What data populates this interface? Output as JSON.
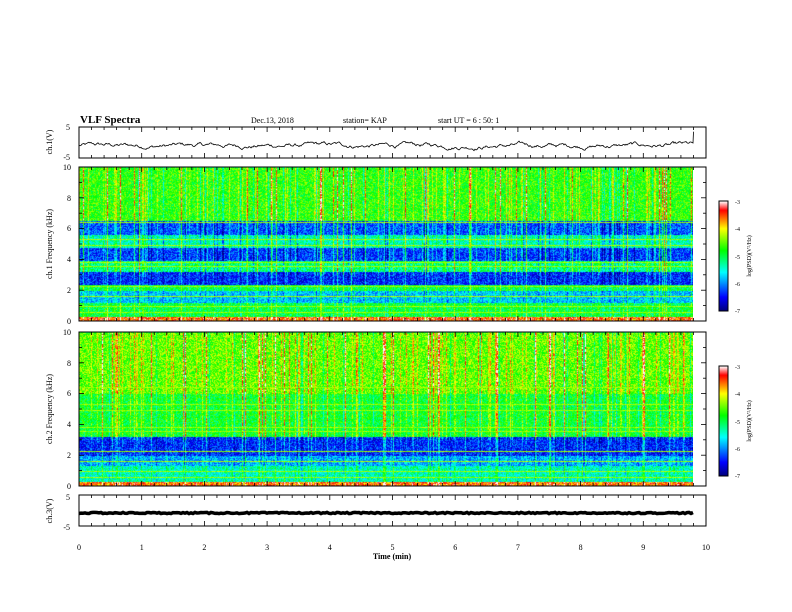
{
  "header": {
    "title": "VLF Spectra",
    "date": "Dec.13, 2018",
    "station": "station= KAP",
    "start_time": "start  UT =  6 : 50: 1"
  },
  "chart_data": [
    {
      "type": "line",
      "panel": "ch1-waveform",
      "ylabel": "ch.1(V)",
      "ylim": [
        -5,
        5
      ],
      "ytick_labels": [
        "5",
        "-5"
      ],
      "xlim": [
        0,
        10
      ],
      "trace_description_values": {
        "baseline": -1.0,
        "fluctuation_range": [
          -3.5,
          1.5
        ],
        "end_spike": 3.5
      }
    },
    {
      "type": "heatmap",
      "panel": "ch1-spectrogram",
      "ylabel": "ch.1 Frequency (kHz)",
      "ylim": [
        0,
        10
      ],
      "ytick_labels": [
        "0",
        "2",
        "4",
        "6",
        "8",
        "10"
      ],
      "xlim": [
        0,
        10
      ],
      "data_extent_min": 9.8,
      "colorbar": {
        "label": "log(PSD)(V²/Hz)",
        "range": [
          -7,
          -3
        ],
        "tick_labels": [
          "-3",
          "-4",
          "-5",
          "-6",
          "-7"
        ]
      },
      "bands_khz": [
        {
          "from": 0.0,
          "to": 0.3,
          "level": -3.5
        },
        {
          "from": 0.3,
          "to": 1.2,
          "level": -5.0
        },
        {
          "from": 1.2,
          "to": 2.0,
          "level": -5.8
        },
        {
          "from": 2.0,
          "to": 2.4,
          "level": -5.0
        },
        {
          "from": 2.4,
          "to": 3.2,
          "level": -6.4
        },
        {
          "from": 3.2,
          "to": 3.9,
          "level": -5.2
        },
        {
          "from": 3.9,
          "to": 4.8,
          "level": -6.3
        },
        {
          "from": 4.8,
          "to": 5.6,
          "level": -5.4
        },
        {
          "from": 5.6,
          "to": 6.5,
          "level": -6.2
        },
        {
          "from": 6.5,
          "to": 10.0,
          "level": -4.7
        }
      ]
    },
    {
      "type": "heatmap",
      "panel": "ch2-spectrogram",
      "ylabel": "ch.2 Frequency (kHz)",
      "ylim": [
        0,
        10
      ],
      "ytick_labels": [
        "0",
        "2",
        "4",
        "6",
        "8",
        "10"
      ],
      "xlim": [
        0,
        10
      ],
      "data_extent_min": 9.8,
      "colorbar": {
        "label": "log(PSD)(V²/Hz)",
        "range": [
          -7,
          -3
        ],
        "tick_labels": [
          "-3",
          "-4",
          "-5",
          "-6",
          "-7"
        ]
      },
      "bands_khz": [
        {
          "from": 0.0,
          "to": 0.3,
          "level": -3.6
        },
        {
          "from": 0.3,
          "to": 1.3,
          "level": -5.4
        },
        {
          "from": 1.3,
          "to": 2.0,
          "level": -5.9
        },
        {
          "from": 2.0,
          "to": 3.2,
          "level": -6.4
        },
        {
          "from": 3.2,
          "to": 6.0,
          "level": -4.9
        },
        {
          "from": 6.0,
          "to": 10.0,
          "level": -4.5
        }
      ]
    },
    {
      "type": "line",
      "panel": "ch3-waveform",
      "ylabel": "ch.3(V)",
      "ylim": [
        -5,
        5
      ],
      "ytick_labels": [
        "5",
        "-5"
      ],
      "xlim": [
        0,
        10
      ],
      "trace_description_values": {
        "baseline": -0.8,
        "fluctuation_range": [
          -1.0,
          -0.6
        ]
      }
    }
  ],
  "xaxis": {
    "label": "Time  (min)",
    "range": [
      0,
      10
    ],
    "tick_labels": [
      "0",
      "1",
      "2",
      "3",
      "4",
      "5",
      "6",
      "7",
      "8",
      "9",
      "10"
    ]
  },
  "colors": {
    "trace": "#000000",
    "colormap": [
      "#00007f",
      "#0000ff",
      "#00ffff",
      "#00ff00",
      "#ffff00",
      "#ff0000",
      "#ffffff"
    ]
  }
}
